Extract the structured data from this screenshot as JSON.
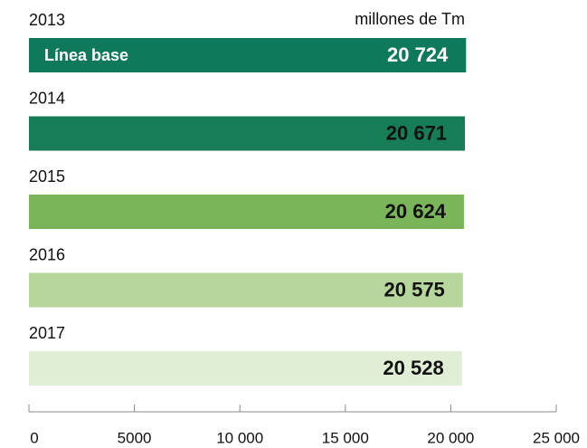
{
  "chart_data": {
    "type": "bar",
    "orientation": "horizontal",
    "unit_label": "millones de Tm",
    "annotation": "Línea base",
    "categories": [
      "2013",
      "2014",
      "2015",
      "2016",
      "2017"
    ],
    "values": [
      20724,
      20671,
      20624,
      20575,
      20528
    ],
    "value_labels": [
      "20 724",
      "20 671",
      "20 624",
      "20 575",
      "20 528"
    ],
    "colors": [
      "#0f7a5b",
      "#177d57",
      "#7bb55a",
      "#b6d69c",
      "#dfeed4"
    ],
    "xlim": [
      0,
      25000
    ],
    "xticks": [
      0,
      5000,
      {
        "value": 10000,
        "label": "10 000"
      },
      {
        "value": 15000,
        "label": "15 000"
      },
      {
        "value": 20000,
        "label": "20 000"
      },
      {
        "value": 25000,
        "label": "25 000"
      }
    ],
    "grid": false
  }
}
